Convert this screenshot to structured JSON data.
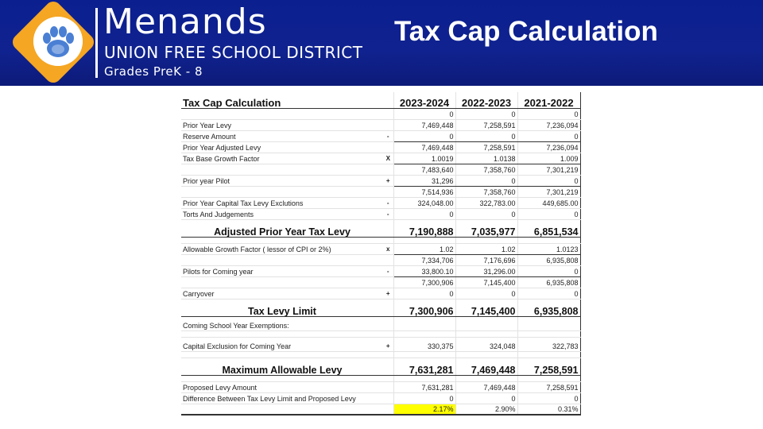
{
  "header": {
    "brand_name": "Menands",
    "brand_subtitle": "UNION FREE SCHOOL DISTRICT",
    "brand_grades": "Grades PreK - 8",
    "slide_title": "Tax Cap Calculation",
    "colors": {
      "banner": "#10228f",
      "logo_accent": "#f5a623",
      "paw": "#4a7fd4"
    },
    "logo_icon": "paw-print-icon"
  },
  "table": {
    "title": "Tax Cap Calculation",
    "columns": [
      "2023-2024",
      "2022-2023",
      "2021-2022"
    ],
    "rows": [
      {
        "label": "",
        "sym": "",
        "v": [
          "0",
          "0",
          "0"
        ]
      },
      {
        "label": "Prior Year Levy",
        "sym": "",
        "v": [
          "7,469,448",
          "7,258,591",
          "7,236,094"
        ]
      },
      {
        "label": "Reserve Amount",
        "sym": "-",
        "v": [
          "0",
          "0",
          "0"
        ]
      },
      {
        "label": "Prior Year Adjusted Levy",
        "sym": "",
        "v": [
          "7,469,448",
          "7,258,591",
          "7,236,094"
        ]
      },
      {
        "label": "Tax Base Growth Factor",
        "sym": "X",
        "v": [
          "1.0019",
          "1.0138",
          "1.009"
        ]
      },
      {
        "label": "",
        "sym": "",
        "v": [
          "7,483,640",
          "7,358,760",
          "7,301,219"
        ]
      },
      {
        "label": "Prior year Pilot",
        "sym": "+",
        "v": [
          "31,296",
          "0",
          "0"
        ]
      },
      {
        "label": "",
        "sym": "",
        "v": [
          "7,514,936",
          "7,358,760",
          "7,301,219"
        ]
      },
      {
        "label": "Prior Year Capital Tax Levy Exclutions",
        "sym": "-",
        "v": [
          "324,048.00",
          "322,783.00",
          "449,685.00"
        ]
      },
      {
        "label": "Torts And Judgements",
        "sym": "-",
        "v": [
          "0",
          "0",
          "0"
        ]
      },
      {
        "label": "Adjusted Prior Year Tax Levy",
        "sym": "",
        "v": [
          "7,190,888",
          "7,035,977",
          "6,851,534"
        ]
      },
      {
        "label": "Allowable Growth Factor ( lessor of CPI or 2%)",
        "sym": "x",
        "v": [
          "1.02",
          "1.02",
          "1.0123"
        ]
      },
      {
        "label": "",
        "sym": "",
        "v": [
          "7,334,706",
          "7,176,696",
          "6,935,808"
        ]
      },
      {
        "label": "Pilots for Coming  year",
        "sym": "-",
        "v": [
          "33,800.10",
          "31,296.00",
          "0"
        ]
      },
      {
        "label": "",
        "sym": "",
        "v": [
          "7,300,906",
          "7,145,400",
          "6,935,808"
        ]
      },
      {
        "label": "Carryover",
        "sym": "+",
        "v": [
          "0",
          "0",
          "0"
        ]
      },
      {
        "label": "Tax Levy Limit",
        "sym": "",
        "v": [
          "7,300,906",
          "7,145,400",
          "6,935,808"
        ]
      },
      {
        "label": "Coming School Year Exemptions:",
        "sym": "",
        "v": [
          "",
          "",
          ""
        ]
      },
      {
        "label": "Capital Exclusion for Coming Year",
        "sym": "+",
        "v": [
          "330,375",
          "324,048",
          "322,783"
        ]
      },
      {
        "label": "Maximum Allowable Levy",
        "sym": "",
        "v": [
          "7,631,281",
          "7,469,448",
          "7,258,591"
        ]
      },
      {
        "label": "Proposed Levy Amount",
        "sym": "",
        "v": [
          "7,631,281",
          "7,469,448",
          "7,258,591"
        ]
      },
      {
        "label": "Difference Between Tax Levy Limit and Proposed Levy",
        "sym": "",
        "v": [
          "0",
          "0",
          "0"
        ]
      },
      {
        "label": "",
        "sym": "",
        "v": [
          "2.17%",
          "2.90%",
          "0.31%"
        ]
      }
    ]
  }
}
